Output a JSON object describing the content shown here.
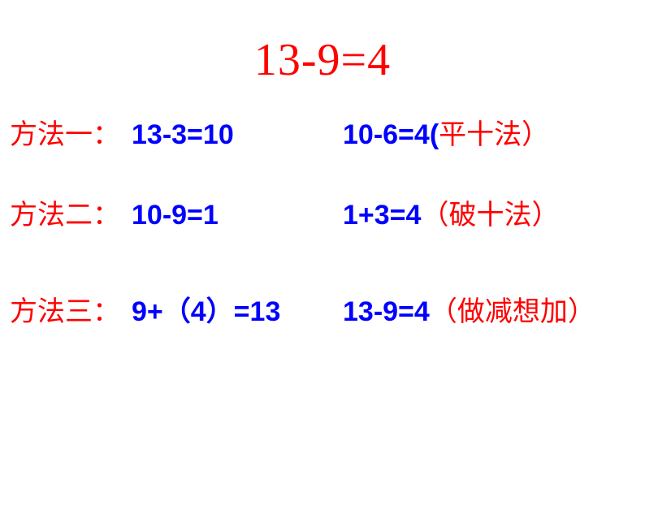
{
  "title": "13-9=4",
  "colors": {
    "red": "#ff0000",
    "blue": "#0000ff",
    "background": "#ffffff"
  },
  "typography": {
    "title_fontsize": 56,
    "row_fontsize": 34,
    "title_font": "Times New Roman",
    "label_font": "SimSun",
    "equation_font": "SimHei"
  },
  "rows": [
    {
      "label": "方法一：",
      "eq1": "13-3=10",
      "eq2_part1": "10-6=4",
      "method_paren_open": "(",
      "method_text": "平十法）",
      "method_color": "red"
    },
    {
      "label": "方法二：",
      "eq1": "10-9=1",
      "eq2_part1": "1+3=4",
      "method_full": "（破十法）",
      "method_color": "red"
    },
    {
      "label": "方法三：",
      "eq1": "9+（4）=13",
      "eq2_part1": "13-9=4",
      "method_full": "（做减想加）",
      "method_color": "red"
    }
  ]
}
